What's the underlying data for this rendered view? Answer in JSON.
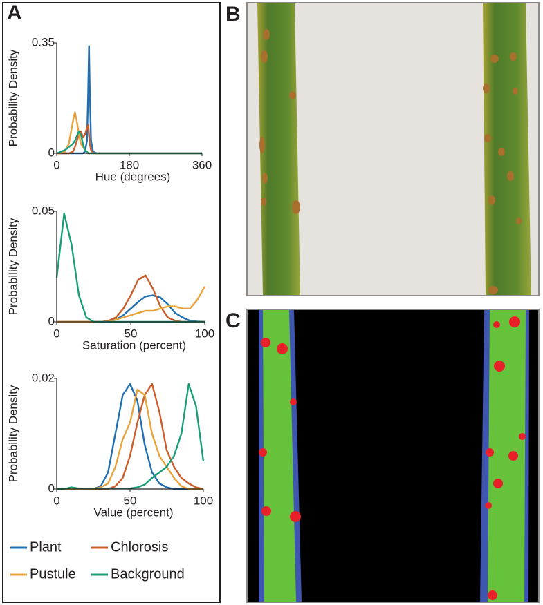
{
  "panel_labels": {
    "a": "A",
    "b": "B",
    "c": "C"
  },
  "legend_position": "bottom",
  "chart_data": [
    {
      "type": "line",
      "x_label": "Hue (degrees)",
      "y_label": "Probability Density",
      "x": [
        0,
        10,
        20,
        30,
        40,
        45,
        50,
        55,
        60,
        65,
        70,
        75,
        78,
        80,
        82,
        85,
        90,
        100,
        120,
        180,
        240,
        300,
        360
      ],
      "xlim": [
        0,
        360
      ],
      "ylim": [
        0,
        0.35
      ],
      "xticks": [
        0,
        180,
        360
      ],
      "yticks": [
        0,
        0.35
      ],
      "series": [
        {
          "name": "Plant",
          "color": "#1f6fb2",
          "values": [
            0,
            0,
            0,
            0,
            0,
            0,
            0,
            0,
            0,
            0,
            0.005,
            0.04,
            0.2,
            0.34,
            0.2,
            0.04,
            0.005,
            0,
            0,
            0,
            0,
            0,
            0
          ]
        },
        {
          "name": "Chlorosis",
          "color": "#cc5c2a",
          "values": [
            0,
            0,
            0,
            0,
            0.005,
            0.02,
            0.04,
            0.06,
            0.07,
            0.05,
            0.06,
            0.08,
            0.09,
            0.06,
            0.03,
            0.01,
            0,
            0,
            0,
            0,
            0,
            0,
            0
          ]
        },
        {
          "name": "Pustule",
          "color": "#e8a33a",
          "values": [
            0,
            0,
            0.005,
            0.03,
            0.1,
            0.13,
            0.1,
            0.06,
            0.03,
            0.02,
            0.01,
            0.005,
            0,
            0,
            0,
            0,
            0,
            0,
            0,
            0,
            0,
            0,
            0
          ]
        },
        {
          "name": "Background",
          "color": "#1a9e7a",
          "values": [
            0,
            0.005,
            0.01,
            0.02,
            0.03,
            0.04,
            0.055,
            0.07,
            0.06,
            0.03,
            0.01,
            0.005,
            0,
            0,
            0,
            0,
            0,
            0,
            0,
            0,
            0,
            0,
            0
          ]
        }
      ]
    },
    {
      "type": "line",
      "x_label": "Saturation (percent)",
      "y_label": "Probability Density",
      "x": [
        0,
        5,
        10,
        15,
        20,
        25,
        30,
        35,
        40,
        45,
        50,
        55,
        60,
        65,
        70,
        75,
        80,
        85,
        90,
        95,
        100
      ],
      "xlim": [
        0,
        100
      ],
      "ylim": [
        0,
        0.05
      ],
      "xticks": [
        0,
        50,
        100
      ],
      "yticks": [
        0,
        0.05
      ],
      "series": [
        {
          "name": "Plant",
          "color": "#1f6fb2",
          "values": [
            0,
            0,
            0,
            0,
            0,
            0,
            0,
            0.0005,
            0.001,
            0.003,
            0.006,
            0.009,
            0.0115,
            0.012,
            0.011,
            0.008,
            0.004,
            0.002,
            0.0005,
            0.0002,
            0
          ]
        },
        {
          "name": "Chlorosis",
          "color": "#cc5c2a",
          "values": [
            0,
            0,
            0,
            0,
            0,
            0,
            0,
            0.0005,
            0.002,
            0.006,
            0.012,
            0.019,
            0.021,
            0.015,
            0.007,
            0.002,
            0.0005,
            0,
            0,
            0,
            0
          ]
        },
        {
          "name": "Pustule",
          "color": "#e8a33a",
          "values": [
            0,
            0,
            0,
            0,
            0,
            0,
            0,
            0,
            0.001,
            0.002,
            0.003,
            0.004,
            0.005,
            0.005,
            0.006,
            0.007,
            0.007,
            0.006,
            0.006,
            0.01,
            0.016
          ]
        },
        {
          "name": "Background",
          "color": "#1a9e7a",
          "values": [
            0.02,
            0.049,
            0.035,
            0.012,
            0.002,
            0,
            0,
            0,
            0,
            0,
            0,
            0,
            0,
            0,
            0,
            0,
            0,
            0,
            0,
            0,
            0
          ]
        }
      ]
    },
    {
      "type": "line",
      "x_label": "Value (percent)",
      "y_label": "Probability Density",
      "x": [
        0,
        5,
        10,
        15,
        20,
        25,
        30,
        35,
        40,
        45,
        50,
        55,
        60,
        65,
        70,
        75,
        80,
        85,
        90,
        95,
        100
      ],
      "xlim": [
        0,
        100
      ],
      "ylim": [
        0,
        0.02
      ],
      "xticks": [
        0,
        50,
        100
      ],
      "yticks": [
        0,
        0.02
      ],
      "series": [
        {
          "name": "Plant",
          "color": "#1f6fb2",
          "values": [
            0,
            0,
            0,
            0,
            0,
            0,
            0.0005,
            0.003,
            0.01,
            0.017,
            0.019,
            0.016,
            0.008,
            0.003,
            0.001,
            0.0003,
            0,
            0,
            0,
            0,
            0
          ]
        },
        {
          "name": "Chlorosis",
          "color": "#cc5c2a",
          "values": [
            0,
            0,
            0,
            0,
            0,
            0,
            0,
            0,
            0.0005,
            0.002,
            0.006,
            0.012,
            0.017,
            0.019,
            0.014,
            0.007,
            0.004,
            0.002,
            0.001,
            0.0003,
            0
          ]
        },
        {
          "name": "Pustule",
          "color": "#e8a33a",
          "values": [
            0,
            0,
            0,
            0,
            0,
            0,
            0.0003,
            0.001,
            0.004,
            0.009,
            0.012,
            0.018,
            0.017,
            0.01,
            0.006,
            0.004,
            0.002,
            0.0005,
            0,
            0,
            0
          ]
        },
        {
          "name": "Background",
          "color": "#1a9e7a",
          "values": [
            0,
            0,
            0.0003,
            0.0001,
            0.0001,
            0.0001,
            0.0001,
            0.0001,
            0.0001,
            0.0001,
            0.0001,
            0.0003,
            0.0008,
            0.002,
            0.003,
            0.004,
            0.006,
            0.01,
            0.019,
            0.015,
            0.005
          ]
        }
      ]
    }
  ]
}
